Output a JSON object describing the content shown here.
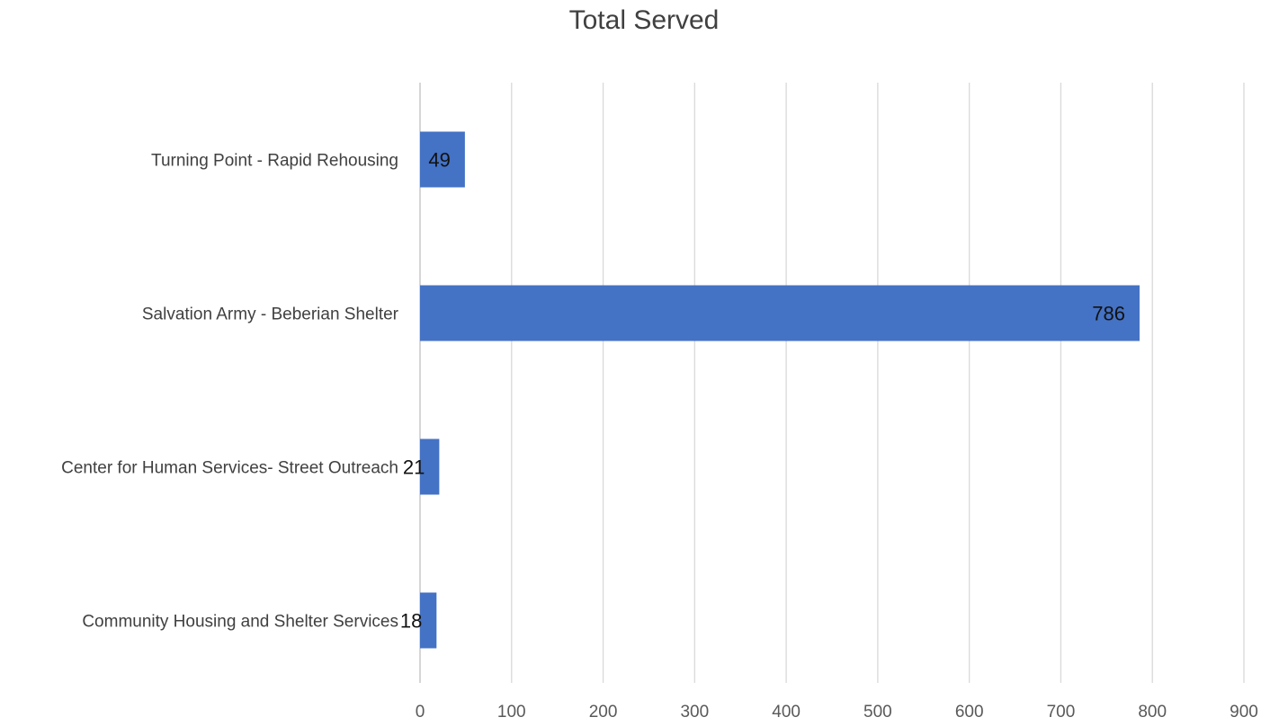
{
  "chart_data": {
    "type": "bar",
    "orientation": "horizontal",
    "title": "Total Served",
    "xlabel": "",
    "ylabel": "",
    "categories": [
      "Turning Point - Rapid Rehousing",
      "Salvation Army - Beberian Shelter",
      "Center for Human Services- Street Outreach",
      "Community Housing and Shelter Services"
    ],
    "values": [
      49,
      786,
      21,
      18
    ],
    "data_labels": [
      "49",
      "786",
      "21",
      "18"
    ],
    "xlim": [
      0,
      900
    ],
    "xticks": [
      "0",
      "100",
      "200",
      "300",
      "400",
      "500",
      "600",
      "700",
      "800",
      "900"
    ],
    "grid": true,
    "legend": "none",
    "bar_color": "#4472C4",
    "grid_color": "#D9D9D9"
  }
}
